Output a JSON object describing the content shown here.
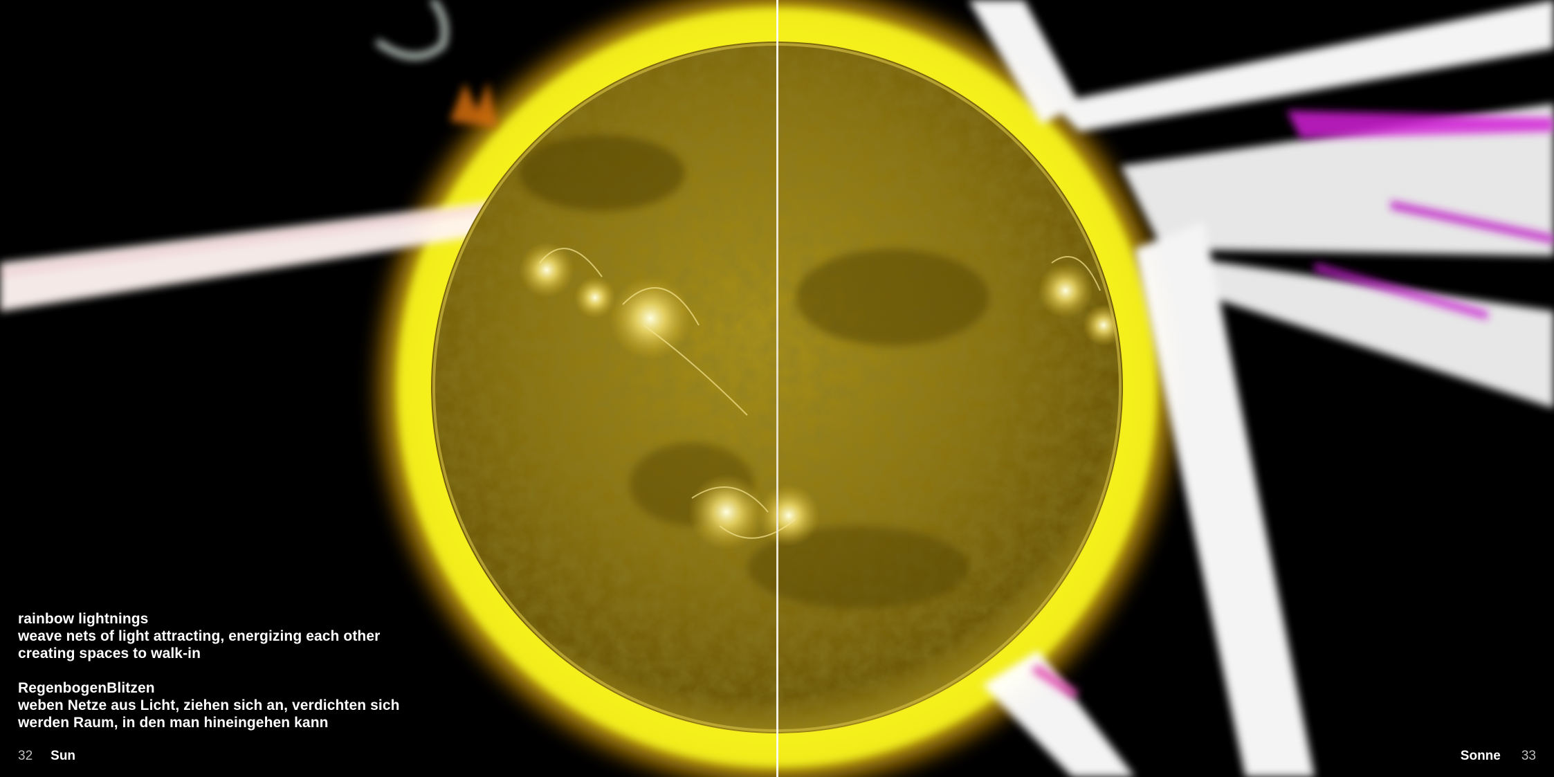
{
  "colors": {
    "background": "#000000",
    "corona": "#f2ef1a",
    "sun_surface": "#8f7a10",
    "text": "#ffffff",
    "folio_number": "#bdbdbd"
  },
  "left_page": {
    "page_number": "32",
    "running_title": "Sun",
    "caption_en": {
      "title": "rainbow lightnings",
      "lines": [
        "weave nets of light attracting, energizing each other",
        "creating spaces to walk-in"
      ]
    },
    "caption_de": {
      "title": "RegenbogenBlitzen",
      "lines": [
        "weben Netze aus Licht, ziehen sich an, verdichten sich",
        "werden Raum, in den man hineingehen kann"
      ]
    }
  },
  "right_page": {
    "running_title": "Sonne",
    "page_number": "33"
  }
}
